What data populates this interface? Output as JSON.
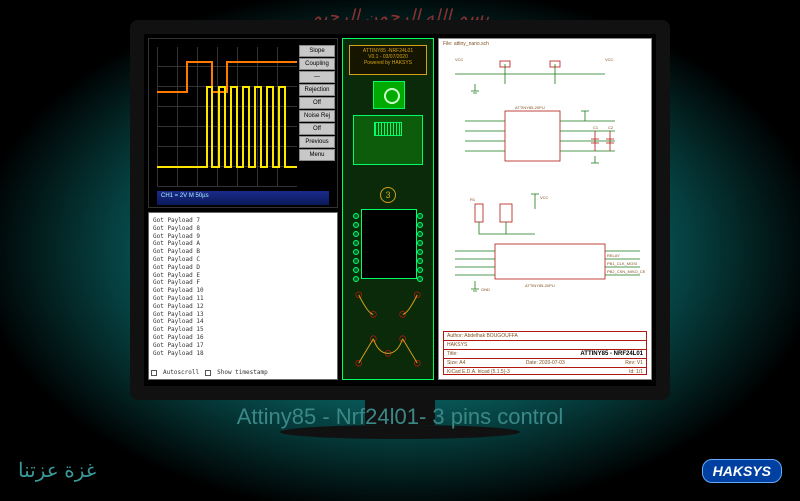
{
  "decor": {
    "arabic_top": "بسم الله الرحمن الرحيم",
    "arabic_bottom": "غزة عزتنا",
    "logo": "HAKSYS",
    "caption": "Attiny85 - Nrf24l01- 3 pins control"
  },
  "scope": {
    "menu": [
      "Slope",
      "Coupling",
      "—",
      "Rejection",
      "Off",
      "Noise Rej",
      "Off",
      "Previous",
      "Menu"
    ],
    "footer": "CH1 = 2V   M 50µs",
    "colors": {
      "ch1": "#ffe600",
      "ch2": "#ff7a00",
      "grid": "#333333",
      "bg": "#000000"
    }
  },
  "console": {
    "lines": [
      "Got Payload 7",
      "Got Payload 8",
      "Got Payload 9",
      "Got Payload A",
      "Got Payload B",
      "Got Payload C",
      "Got Payload D",
      "Got Payload E",
      "Got Payload F",
      "Got Payload 10",
      "Got Payload 11",
      "Got Payload 12",
      "Got Payload 13",
      "Got Payload 14",
      "Got Payload 15",
      "Got Payload 16",
      "Got Payload 17",
      "Got Payload 18"
    ],
    "footer": {
      "autoscroll": "Autoscroll",
      "timestamp": "Show timestamp"
    }
  },
  "pcb": {
    "silk1": "ATTINY85 -NRF24L01",
    "silk2": "V0.1 - 03/07/2020",
    "silk3": "Powered by HAKSYS",
    "badge": "3",
    "label_u1": "U1",
    "colors": {
      "board": "#0a2a0a",
      "outline": "#00ff66",
      "silk": "#d4a017"
    }
  },
  "schematic": {
    "sheet_header": "File: attiny_nano.sch",
    "author_line": "Author: Abdelhak BOUGOUFFA",
    "company": "HAKSYS",
    "title_label": "Title:",
    "title": "ATTINY85 - NRF24L01",
    "size": "Size: A4",
    "date": "Date: 2020-07-03",
    "rev": "Rev: V1",
    "kicad": "KiCad E.D.A.  kicad (5.1.5)-3",
    "id": "Id: 1/1",
    "labels": {
      "vcc": "VCC",
      "gnd": "GND",
      "u1": "ATTINY85-20PU",
      "r1": "R1",
      "c1": "C1",
      "c2": "C2",
      "relay": "RELAY",
      "clk": "PB1_CLK_MOSI",
      "csn": "PB2_CSN_MISO_CE"
    },
    "colors": {
      "wire": "#1a7a1a",
      "component": "#b01810",
      "text": "#805020",
      "pin": "#1a7a1a"
    }
  }
}
